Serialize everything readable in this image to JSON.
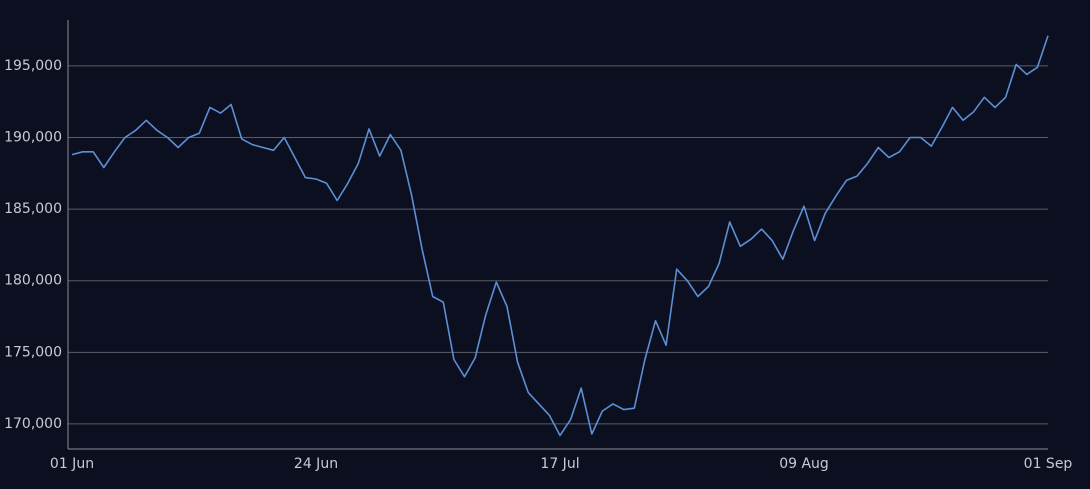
{
  "chart_data": {
    "type": "line",
    "categories": [
      "01 Jun",
      null,
      null,
      null,
      null,
      null,
      null,
      null,
      null,
      null,
      null,
      null,
      null,
      null,
      null,
      null,
      null,
      null,
      null,
      null,
      null,
      null,
      null,
      "24 Jun",
      null,
      null,
      null,
      null,
      null,
      null,
      null,
      null,
      null,
      null,
      null,
      null,
      null,
      null,
      null,
      null,
      null,
      null,
      null,
      null,
      null,
      null,
      "17 Jul",
      null,
      null,
      null,
      null,
      null,
      null,
      null,
      null,
      null,
      null,
      null,
      null,
      null,
      null,
      null,
      null,
      null,
      null,
      null,
      null,
      null,
      null,
      "09 Aug",
      null,
      null,
      null,
      null,
      null,
      null,
      null,
      null,
      null,
      null,
      null,
      null,
      null,
      null,
      null,
      null,
      null,
      null,
      null,
      null,
      null,
      null,
      "01 Sep"
    ],
    "series": [
      {
        "color": "#5b8fd6",
        "values": [
          188800,
          189000,
          189000,
          187900,
          189000,
          190000,
          190500,
          191200,
          190500,
          190000,
          189300,
          190000,
          190300,
          192100,
          191700,
          192300,
          189900,
          189500,
          189300,
          189100,
          190000,
          188600,
          187200,
          187100,
          186800,
          185600,
          186800,
          188200,
          190600,
          188700,
          190200,
          189100,
          186000,
          182200,
          178900,
          178500,
          174500,
          173300,
          174600,
          177600,
          179900,
          178200,
          174300,
          172200,
          171400,
          170600,
          169200,
          170300,
          172500,
          169300,
          170900,
          171400,
          171000,
          171100,
          174500,
          177200,
          175500,
          180800,
          180000,
          178900,
          179600,
          181200,
          184100,
          182400,
          182900,
          183600,
          182800,
          181500,
          183500,
          185200,
          182800,
          184700,
          185900,
          187000,
          187300,
          188200,
          189300,
          188600,
          189000,
          190000,
          190000,
          189400,
          190700,
          192100,
          191200,
          191800,
          192800,
          192100,
          192800,
          195100,
          194400,
          194900,
          197100
        ]
      }
    ],
    "ylim": [
      168250,
      198200
    ],
    "yticks": [
      {
        "value": 170000,
        "label": "170,000"
      },
      {
        "value": 175000,
        "label": "175,000"
      },
      {
        "value": 180000,
        "label": "180,000"
      },
      {
        "value": 185000,
        "label": "185,000"
      },
      {
        "value": 190000,
        "label": "190,000"
      },
      {
        "value": 195000,
        "label": "195,000"
      }
    ],
    "grid": true
  }
}
